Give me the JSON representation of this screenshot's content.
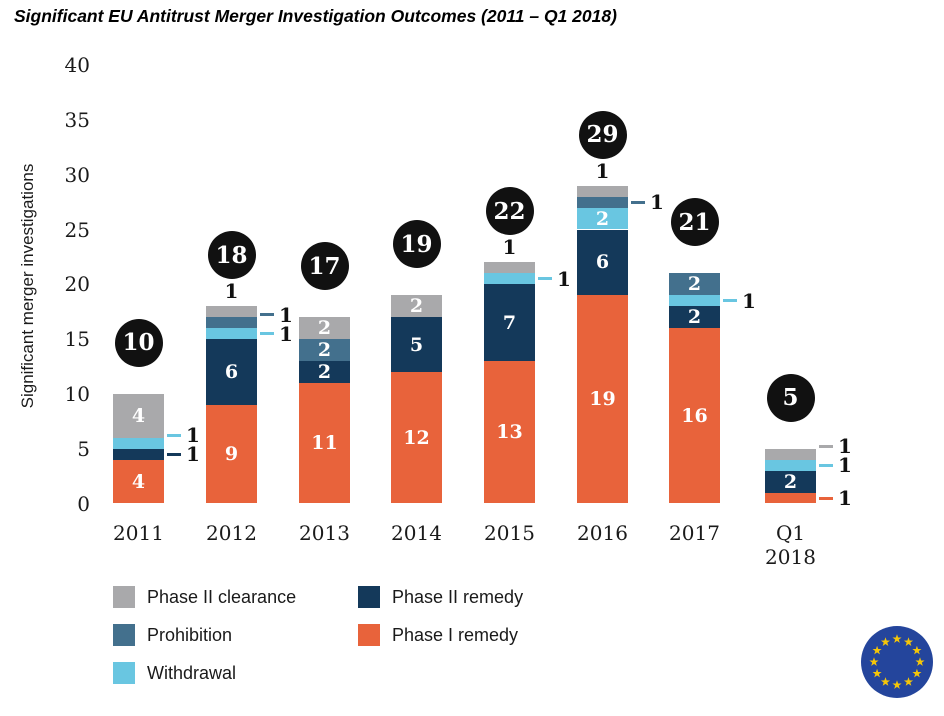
{
  "chart_data": {
    "type": "stacked-bar",
    "title": "Significant EU Antitrust Merger Investigation Outcomes (2011 – Q1 2018)",
    "ylabel": "Significant merger investigations",
    "ylim": [
      0,
      40
    ],
    "yticks": [
      0,
      5,
      10,
      15,
      20,
      25,
      30,
      35,
      40
    ],
    "grid": false,
    "stack_order_bottom_to_top": [
      "Phase I remedy",
      "Phase II remedy",
      "Withdrawal",
      "Prohibition",
      "Phase II clearance"
    ],
    "palette": {
      "Phase I remedy": "#e8633b",
      "Phase II remedy": "#14395a",
      "Withdrawal": "#69c6e1",
      "Prohibition": "#43708d",
      "Phase II clearance": "#a9a9ab"
    },
    "total_badge_color": "#111111",
    "categories": [
      "2011",
      "2012",
      "2013",
      "2014",
      "2015",
      "2016",
      "2017",
      "Q1 2018"
    ],
    "bars": [
      {
        "category": "2011",
        "total": 10,
        "segments": [
          {
            "series": "Phase I remedy",
            "value": 4,
            "label": "inside"
          },
          {
            "series": "Phase II remedy",
            "value": 1,
            "label": "callout"
          },
          {
            "series": "Withdrawal",
            "value": 1,
            "label": "callout"
          },
          {
            "series": "Phase II clearance",
            "value": 4,
            "label": "inside"
          }
        ]
      },
      {
        "category": "2012",
        "total": 18,
        "segments": [
          {
            "series": "Phase I remedy",
            "value": 9,
            "label": "inside"
          },
          {
            "series": "Phase II remedy",
            "value": 6,
            "label": "inside"
          },
          {
            "series": "Withdrawal",
            "value": 1,
            "label": "callout"
          },
          {
            "series": "Prohibition",
            "value": 1,
            "label": "callout"
          },
          {
            "series": "Phase II clearance",
            "value": 1,
            "label": "above"
          }
        ]
      },
      {
        "category": "2013",
        "total": 17,
        "segments": [
          {
            "series": "Phase I remedy",
            "value": 11,
            "label": "inside"
          },
          {
            "series": "Phase II remedy",
            "value": 2,
            "label": "inside"
          },
          {
            "series": "Prohibition",
            "value": 2,
            "label": "inside"
          },
          {
            "series": "Phase II clearance",
            "value": 2,
            "label": "inside"
          }
        ]
      },
      {
        "category": "2014",
        "total": 19,
        "segments": [
          {
            "series": "Phase I remedy",
            "value": 12,
            "label": "inside"
          },
          {
            "series": "Phase II remedy",
            "value": 5,
            "label": "inside"
          },
          {
            "series": "Phase II clearance",
            "value": 2,
            "label": "inside"
          }
        ]
      },
      {
        "category": "2015",
        "total": 22,
        "segments": [
          {
            "series": "Phase I remedy",
            "value": 13,
            "label": "inside"
          },
          {
            "series": "Phase II remedy",
            "value": 7,
            "label": "inside"
          },
          {
            "series": "Withdrawal",
            "value": 1,
            "label": "callout"
          },
          {
            "series": "Phase II clearance",
            "value": 1,
            "label": "above"
          }
        ]
      },
      {
        "category": "2016",
        "total": 29,
        "segments": [
          {
            "series": "Phase I remedy",
            "value": 19,
            "label": "inside"
          },
          {
            "series": "Phase II remedy",
            "value": 6,
            "label": "inside"
          },
          {
            "series": "Withdrawal",
            "value": 2,
            "label": "inside"
          },
          {
            "series": "Prohibition",
            "value": 1,
            "label": "callout"
          },
          {
            "series": "Phase II clearance",
            "value": 1,
            "label": "above"
          }
        ]
      },
      {
        "category": "2017",
        "total": 21,
        "segments": [
          {
            "series": "Phase I remedy",
            "value": 16,
            "label": "inside"
          },
          {
            "series": "Phase II remedy",
            "value": 2,
            "label": "inside"
          },
          {
            "series": "Withdrawal",
            "value": 1,
            "label": "callout"
          },
          {
            "series": "Prohibition",
            "value": 2,
            "label": "inside"
          }
        ]
      },
      {
        "category": "Q1 2018",
        "total": 5,
        "segments": [
          {
            "series": "Phase I remedy",
            "value": 1,
            "label": "callout"
          },
          {
            "series": "Phase II remedy",
            "value": 2,
            "label": "inside"
          },
          {
            "series": "Withdrawal",
            "value": 1,
            "label": "callout"
          },
          {
            "series": "Phase II clearance",
            "value": 1,
            "label": "callout"
          }
        ]
      }
    ],
    "legend": {
      "position": "bottom-left",
      "items": [
        {
          "label": "Phase II clearance",
          "series": "Phase II clearance",
          "col": 0,
          "row": 0
        },
        {
          "label": "Prohibition",
          "series": "Prohibition",
          "col": 0,
          "row": 1
        },
        {
          "label": "Withdrawal",
          "series": "Withdrawal",
          "col": 0,
          "row": 2
        },
        {
          "label": "Phase II remedy",
          "series": "Phase II remedy",
          "col": 1,
          "row": 0
        },
        {
          "label": "Phase I remedy",
          "series": "Phase I remedy",
          "col": 1,
          "row": 1
        }
      ]
    }
  },
  "footer": {
    "eu_flag": {
      "circle_color": "#24459c",
      "star_color": "#f5c608",
      "star_count": 12
    }
  }
}
